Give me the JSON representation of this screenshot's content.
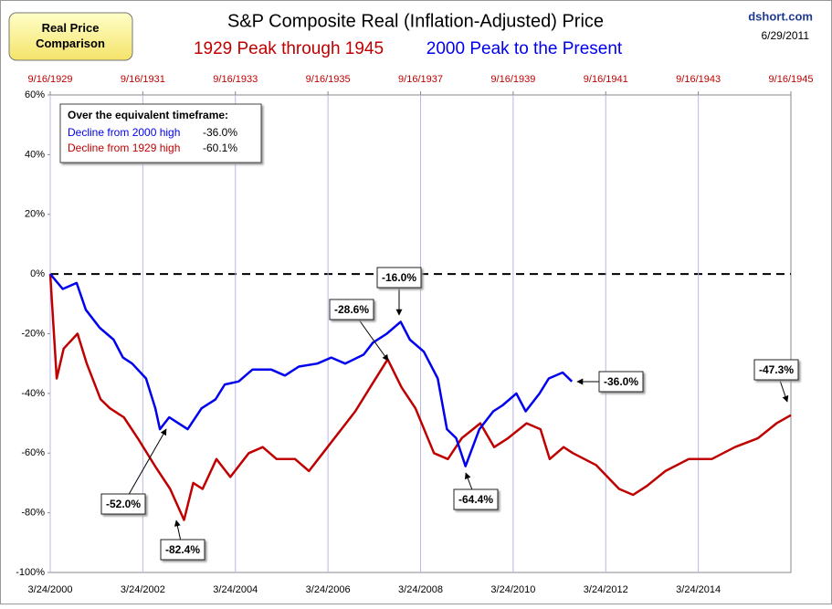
{
  "chart_data": {
    "type": "line",
    "title": "S&P Composite Real (Inflation-Adjusted) Price",
    "subtitle_left": "1929 Peak through 1945",
    "subtitle_right": "2000 Peak to the Present",
    "badge": "Real Price Comparison",
    "source": "dshort.com",
    "date": "6/29/2011",
    "legend_box": {
      "heading": "Over the equivalent timeframe:",
      "rows": [
        {
          "label": "Decline from 2000  high",
          "value": "-36.0%",
          "color": "#0000ee"
        },
        {
          "label": "Decline from 1929  high",
          "value": "-60.1%",
          "color": "#c00000"
        }
      ]
    },
    "xlim": [
      2000.23,
      2016.23
    ],
    "xticks": [
      {
        "value": 2000.23,
        "label": "3/24/2000"
      },
      {
        "value": 2002.23,
        "label": "3/24/2002"
      },
      {
        "value": 2004.23,
        "label": "3/24/2004"
      },
      {
        "value": 2006.23,
        "label": "3/24/2006"
      },
      {
        "value": 2008.23,
        "label": "3/24/2008"
      },
      {
        "value": 2010.23,
        "label": "3/24/2010"
      },
      {
        "value": 2012.23,
        "label": "3/24/2012"
      },
      {
        "value": 2014.23,
        "label": "3/24/2014"
      }
    ],
    "x2lim": [
      1929.71,
      1945.71
    ],
    "x2ticks": [
      {
        "value": 1929.71,
        "label": "9/16/1929"
      },
      {
        "value": 1931.71,
        "label": "9/16/1931"
      },
      {
        "value": 1933.71,
        "label": "9/16/1933"
      },
      {
        "value": 1935.71,
        "label": "9/16/1935"
      },
      {
        "value": 1937.71,
        "label": "9/16/1937"
      },
      {
        "value": 1939.71,
        "label": "9/16/1939"
      },
      {
        "value": 1941.71,
        "label": "9/16/1941"
      },
      {
        "value": 1943.71,
        "label": "9/16/1943"
      },
      {
        "value": 1945.71,
        "label": "9/16/1945"
      }
    ],
    "ylim": [
      -100,
      60
    ],
    "yticks": [
      {
        "value": 60,
        "label": "60%"
      },
      {
        "value": 40,
        "label": "40%"
      },
      {
        "value": 20,
        "label": "20%"
      },
      {
        "value": 0,
        "label": "0%"
      },
      {
        "value": -20,
        "label": "-20%"
      },
      {
        "value": -40,
        "label": "-40%"
      },
      {
        "value": -60,
        "label": "-60%"
      },
      {
        "value": -80,
        "label": "-80%"
      },
      {
        "value": -100,
        "label": "-100%"
      }
    ],
    "grid": true,
    "series": [
      {
        "name": "2000 Peak to the Present",
        "color": "#0000ee",
        "axis": "x",
        "x": [
          2000.23,
          2000.5,
          2000.8,
          2001.0,
          2001.3,
          2001.6,
          2001.8,
          2002.0,
          2002.3,
          2002.5,
          2002.6,
          2002.8,
          2003.0,
          2003.2,
          2003.5,
          2003.8,
          2004.0,
          2004.3,
          2004.6,
          2005.0,
          2005.3,
          2005.6,
          2006.0,
          2006.3,
          2006.6,
          2007.0,
          2007.2,
          2007.5,
          2007.8,
          2008.0,
          2008.3,
          2008.6,
          2008.8,
          2009.0,
          2009.2,
          2009.5,
          2009.8,
          2010.0,
          2010.3,
          2010.5,
          2010.8,
          2011.0,
          2011.3,
          2011.5
        ],
        "values": [
          0,
          -5,
          -3,
          -12,
          -18,
          -22,
          -28,
          -30,
          -35,
          -45,
          -52,
          -48,
          -50,
          -52,
          -45,
          -42,
          -37,
          -36,
          -32,
          -32,
          -34,
          -31,
          -30,
          -28,
          -30,
          -27,
          -23,
          -20,
          -16,
          -22,
          -26,
          -35,
          -52,
          -55,
          -64.4,
          -52,
          -46,
          -44,
          -40,
          -46,
          -40,
          -35,
          -33,
          -36
        ]
      },
      {
        "name": "1929 Peak through 1945",
        "color": "#c00000",
        "axis": "x2",
        "x": [
          1929.71,
          1929.85,
          1930.0,
          1930.3,
          1930.5,
          1930.8,
          1931.0,
          1931.3,
          1931.6,
          1932.0,
          1932.3,
          1932.6,
          1932.8,
          1933.0,
          1933.3,
          1933.6,
          1934.0,
          1934.3,
          1934.6,
          1935.0,
          1935.3,
          1935.6,
          1936.0,
          1936.3,
          1936.7,
          1937.0,
          1937.3,
          1937.6,
          1938.0,
          1938.3,
          1938.6,
          1939.0,
          1939.3,
          1939.6,
          1940.0,
          1940.3,
          1940.5,
          1940.8,
          1941.0,
          1941.5,
          1942.0,
          1942.3,
          1942.6,
          1943.0,
          1943.5,
          1944.0,
          1944.5,
          1945.0,
          1945.4,
          1945.71
        ],
        "values": [
          0,
          -35,
          -25,
          -20,
          -30,
          -42,
          -45,
          -48,
          -55,
          -65,
          -72,
          -82.4,
          -70,
          -72,
          -62,
          -68,
          -60,
          -58,
          -62,
          -62,
          -66,
          -60,
          -52,
          -46,
          -36,
          -28.6,
          -38,
          -45,
          -60,
          -62,
          -55,
          -50,
          -58,
          -55,
          -50,
          -52,
          -62,
          -58,
          -60,
          -64,
          -72,
          -74,
          -71,
          -66,
          -62,
          -62,
          -58,
          -55,
          -50,
          -47.3
        ]
      }
    ],
    "annotations": [
      "-52.0%",
      "-82.4%",
      "-28.6%",
      "-16.0%",
      "-64.4%",
      "-36.0%",
      "-47.3%"
    ]
  }
}
